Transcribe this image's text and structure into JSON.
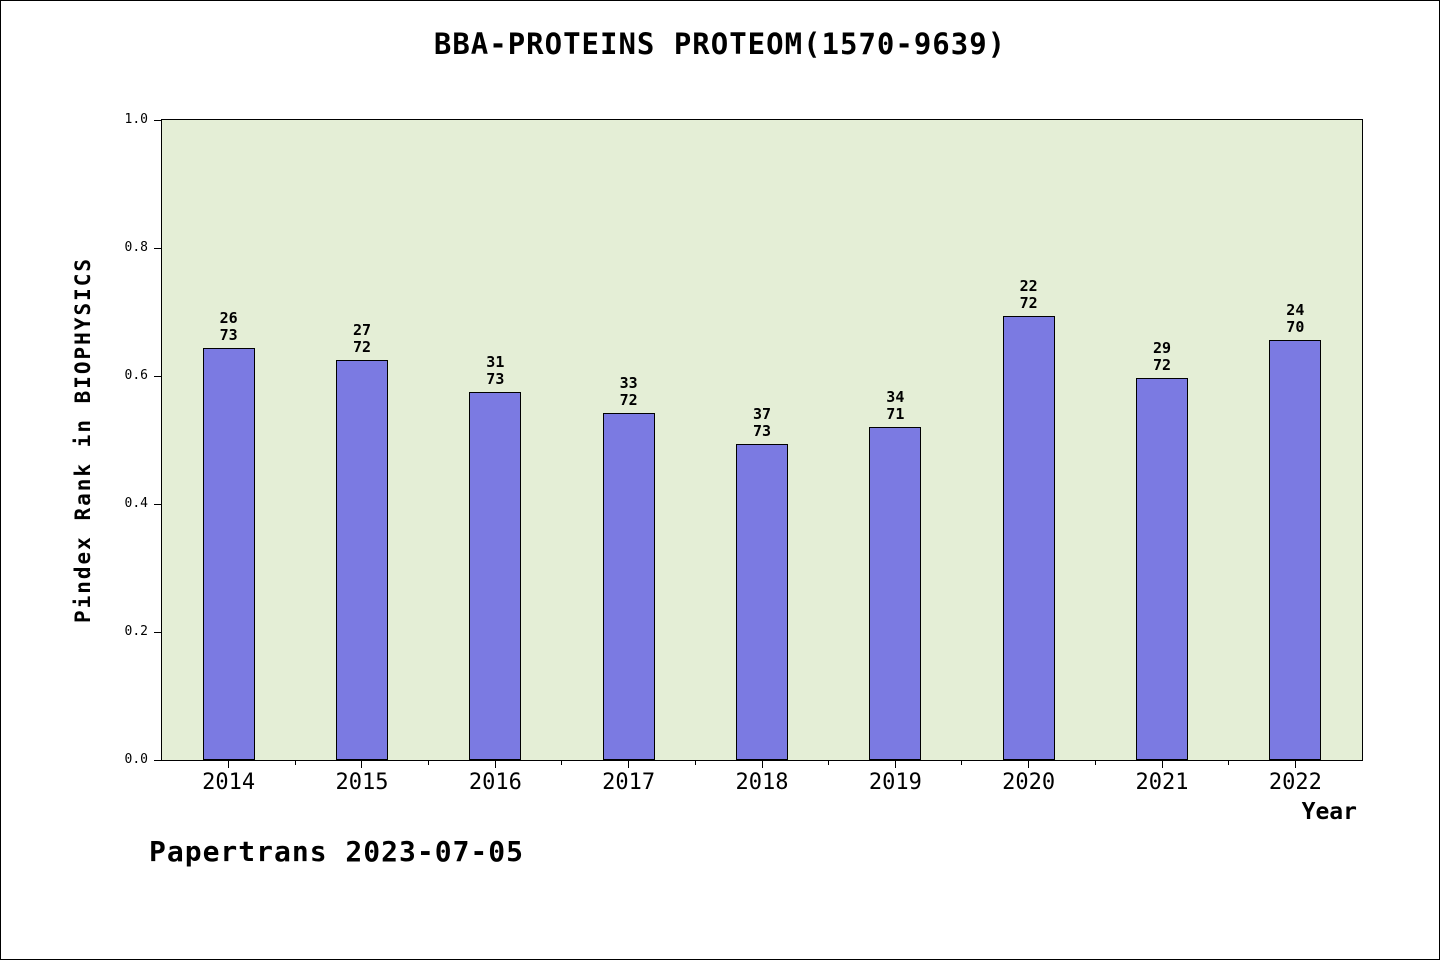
{
  "title": "BBA-PROTEINS PROTEOM(1570-9639)",
  "footer": "Papertrans 2023-07-05",
  "chart_data": {
    "type": "bar",
    "title": "BBA-PROTEINS PROTEOM(1570-9639)",
    "xlabel": "Year",
    "ylabel": "Pindex Rank in BIOPHYSICS",
    "categories": [
      "2014",
      "2015",
      "2016",
      "2017",
      "2018",
      "2019",
      "2020",
      "2021",
      "2022"
    ],
    "values": [
      0.644,
      0.625,
      0.575,
      0.542,
      0.493,
      0.521,
      0.694,
      0.597,
      0.657
    ],
    "annotations": [
      {
        "rank": "26",
        "total": "73"
      },
      {
        "rank": "27",
        "total": "72"
      },
      {
        "rank": "31",
        "total": "73"
      },
      {
        "rank": "33",
        "total": "72"
      },
      {
        "rank": "37",
        "total": "73"
      },
      {
        "rank": "34",
        "total": "71"
      },
      {
        "rank": "22",
        "total": "72"
      },
      {
        "rank": "29",
        "total": "72"
      },
      {
        "rank": "24",
        "total": "70"
      }
    ],
    "ylim": [
      0,
      1
    ],
    "yticks": [
      "0.0",
      "0.2",
      "0.4",
      "0.6",
      "0.8",
      "1.0"
    ],
    "grid": false,
    "legend": false,
    "bar_color": "#7b7ae2",
    "bar_border_color": "#000000",
    "plot_background": "#e4eed6",
    "watermark": "Papertrans 2023-07-05"
  }
}
